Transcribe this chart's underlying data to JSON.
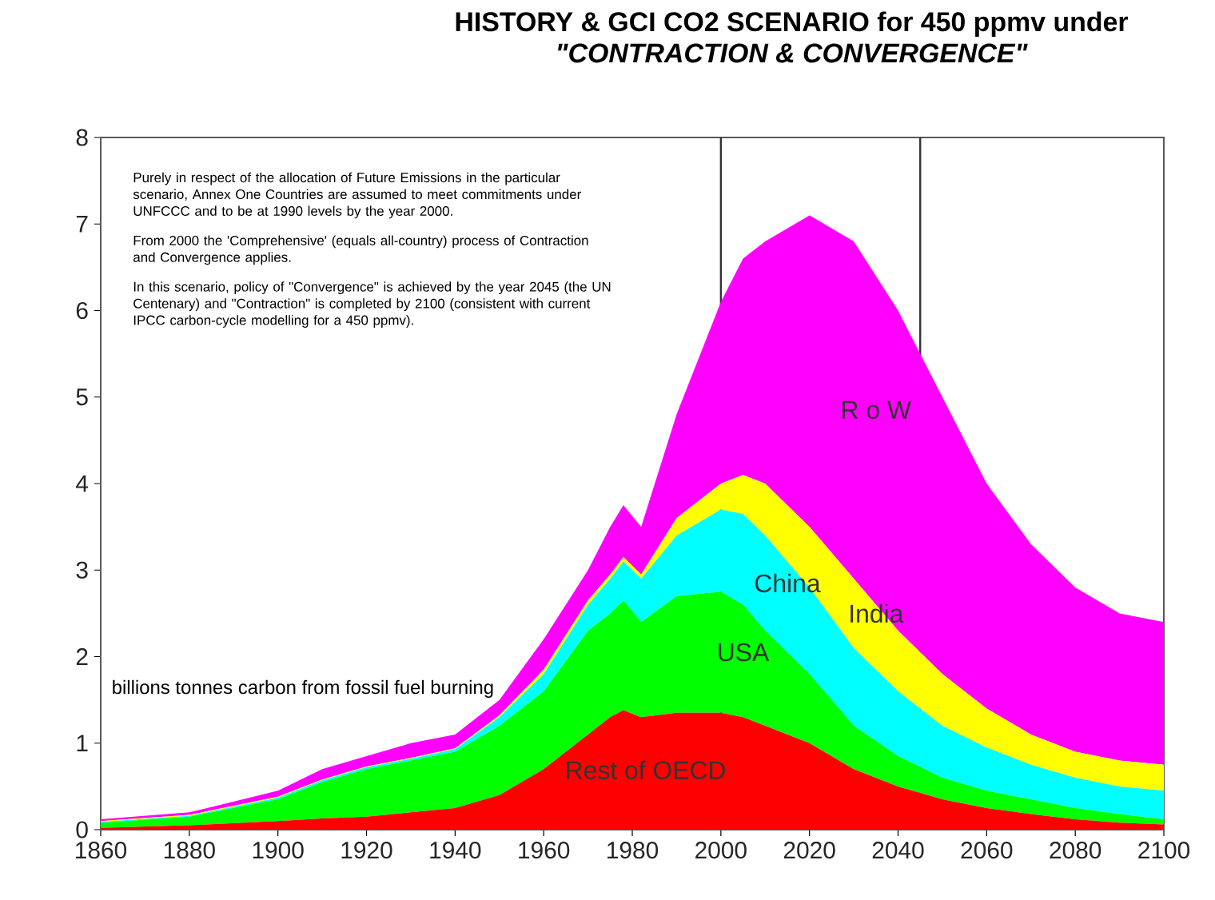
{
  "chart_data": {
    "type": "area",
    "stacked": true,
    "title": "HISTORY & GCI CO2 SCENARIO for 450 ppmv under",
    "subtitle": "\"CONTRACTION & CONVERGENCE\"",
    "annotations": [
      "billions tonnes carbon from fossil fuel burning",
      "Purely in respect of the allocation of Future Emissions in the particular scenario, Annex One Countries are assumed to meet commitments under UNFCCC and to be at 1990 levels by the year 2000.",
      "From 2000 the 'Comprehensive' (equals all-country) process of Contraction and Convergence applies.",
      "In this scenario, policy of \"Convergence\" is achieved by the year 2045 (the UN Centenary) and \"Contraction\" is completed by 2100 (consistent with current IPCC carbon-cycle modelling for a 450 ppmv)."
    ],
    "x": [
      1860,
      1880,
      1900,
      1910,
      1920,
      1930,
      1940,
      1950,
      1960,
      1970,
      1975,
      1978,
      1982,
      1990,
      2000,
      2005,
      2010,
      2020,
      2030,
      2040,
      2050,
      2060,
      2070,
      2080,
      2090,
      2100
    ],
    "series": [
      {
        "name": "Rest of OECD",
        "color": "#ff0000",
        "values": [
          0.02,
          0.05,
          0.1,
          0.13,
          0.15,
          0.2,
          0.25,
          0.4,
          0.7,
          1.1,
          1.3,
          1.38,
          1.3,
          1.35,
          1.35,
          1.3,
          1.2,
          1.0,
          0.7,
          0.5,
          0.35,
          0.25,
          0.18,
          0.12,
          0.08,
          0.06
        ]
      },
      {
        "name": "USA",
        "color": "#00ff00",
        "values": [
          0.06,
          0.1,
          0.25,
          0.42,
          0.55,
          0.6,
          0.65,
          0.8,
          0.9,
          1.2,
          1.2,
          1.27,
          1.1,
          1.35,
          1.4,
          1.3,
          1.1,
          0.8,
          0.5,
          0.35,
          0.25,
          0.2,
          0.17,
          0.13,
          0.1,
          0.06
        ]
      },
      {
        "name": "China",
        "color": "#00ffff",
        "values": [
          0.01,
          0.01,
          0.02,
          0.02,
          0.02,
          0.02,
          0.03,
          0.1,
          0.2,
          0.3,
          0.4,
          0.45,
          0.5,
          0.7,
          0.95,
          1.05,
          1.1,
          1.0,
          0.9,
          0.75,
          0.6,
          0.5,
          0.4,
          0.35,
          0.32,
          0.33
        ]
      },
      {
        "name": "India",
        "color": "#ffff00",
        "values": [
          0.01,
          0.01,
          0.01,
          0.01,
          0.01,
          0.01,
          0.01,
          0.02,
          0.05,
          0.05,
          0.05,
          0.05,
          0.05,
          0.2,
          0.3,
          0.45,
          0.6,
          0.7,
          0.8,
          0.7,
          0.6,
          0.45,
          0.35,
          0.3,
          0.3,
          0.3
        ]
      },
      {
        "name": "R o W",
        "color": "#ff00ff",
        "values": [
          0.02,
          0.03,
          0.07,
          0.12,
          0.12,
          0.17,
          0.16,
          0.18,
          0.35,
          0.35,
          0.55,
          0.6,
          0.55,
          1.2,
          2.1,
          2.5,
          2.8,
          3.6,
          3.9,
          3.7,
          3.2,
          2.6,
          2.2,
          1.9,
          1.7,
          1.65
        ]
      }
    ],
    "xlim": [
      1860,
      2100
    ],
    "ylim": [
      0,
      8
    ],
    "xticks": [
      1860,
      1880,
      1900,
      1920,
      1940,
      1960,
      1980,
      2000,
      2020,
      2040,
      2060,
      2080,
      2100
    ],
    "yticks": [
      0,
      1,
      2,
      3,
      4,
      5,
      6,
      7,
      8
    ],
    "ref_lines": [
      {
        "axis": "x",
        "value": 2000,
        "color": "#333333"
      },
      {
        "axis": "x",
        "value": 2045,
        "color": "#333333"
      }
    ],
    "grid": false,
    "legend": false
  }
}
